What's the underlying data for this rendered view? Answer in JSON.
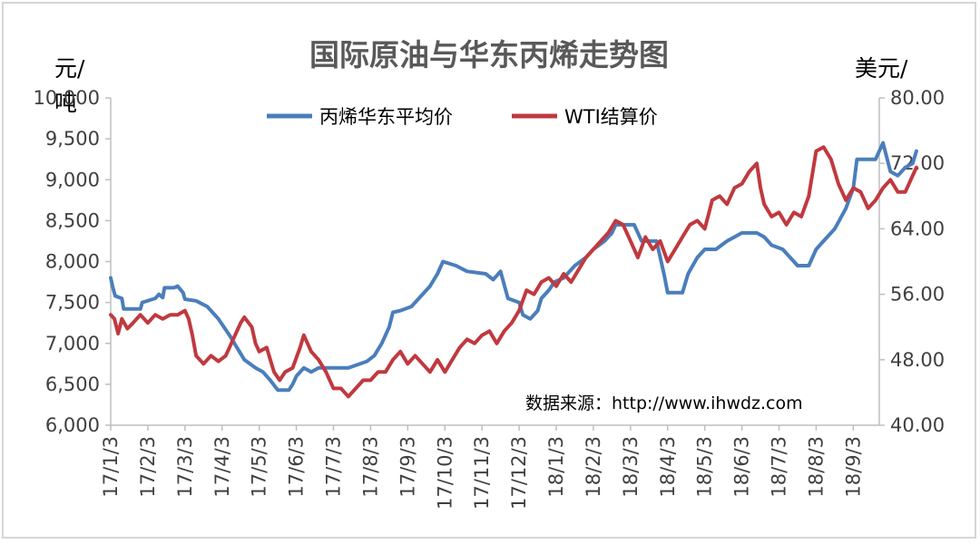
{
  "chart_data": {
    "type": "line",
    "title": "国际原油与华东丙烯走势图",
    "left_unit_line1": "元/",
    "left_unit_line2": "吨",
    "right_unit": "美元/",
    "source": "数据来源：http://www.ihwdz.com",
    "ylim_left": [
      6000,
      10000
    ],
    "ylim_right": [
      40,
      80
    ],
    "y_ticks_left": [
      "6,000",
      "6,500",
      "7,000",
      "7,500",
      "8,000",
      "8,500",
      "9,000",
      "9,500",
      "10,000"
    ],
    "y_ticks_right": [
      "40.00",
      "48.00",
      "56.00",
      "64.00",
      "72.00",
      "80.00"
    ],
    "x_ticks": [
      "17/1/3",
      "17/2/3",
      "17/3/3",
      "17/4/3",
      "17/5/3",
      "17/6/3",
      "17/7/3",
      "17/8/3",
      "17/9/3",
      "17/10/3",
      "17/11/3",
      "17/12/3",
      "18/1/3",
      "18/2/3",
      "18/3/3",
      "18/4/3",
      "18/5/3",
      "18/6/3",
      "18/7/3",
      "18/8/3",
      "18/9/3"
    ],
    "x_range_months": [
      0,
      20.7
    ],
    "legend_position": "top-center",
    "grid": false,
    "series": [
      {
        "name": "丙烯华东平均价",
        "axis": "left",
        "color": "#4a7ebb",
        "points": [
          [
            0.0,
            7800
          ],
          [
            0.05,
            7700
          ],
          [
            0.12,
            7580
          ],
          [
            0.3,
            7550
          ],
          [
            0.35,
            7420
          ],
          [
            0.8,
            7420
          ],
          [
            0.85,
            7500
          ],
          [
            1.2,
            7550
          ],
          [
            1.3,
            7600
          ],
          [
            1.4,
            7560
          ],
          [
            1.45,
            7680
          ],
          [
            1.7,
            7680
          ],
          [
            1.8,
            7700
          ],
          [
            1.95,
            7620
          ],
          [
            2.0,
            7540
          ],
          [
            2.3,
            7520
          ],
          [
            2.6,
            7450
          ],
          [
            2.9,
            7300
          ],
          [
            3.2,
            7100
          ],
          [
            3.4,
            6950
          ],
          [
            3.6,
            6800
          ],
          [
            3.9,
            6700
          ],
          [
            4.1,
            6650
          ],
          [
            4.3,
            6550
          ],
          [
            4.5,
            6430
          ],
          [
            4.8,
            6430
          ],
          [
            4.9,
            6500
          ],
          [
            5.0,
            6600
          ],
          [
            5.2,
            6700
          ],
          [
            5.4,
            6650
          ],
          [
            5.6,
            6700
          ],
          [
            6.4,
            6700
          ],
          [
            6.9,
            6780
          ],
          [
            7.1,
            6850
          ],
          [
            7.3,
            7000
          ],
          [
            7.5,
            7200
          ],
          [
            7.6,
            7380
          ],
          [
            7.8,
            7400
          ],
          [
            8.1,
            7450
          ],
          [
            8.3,
            7550
          ],
          [
            8.6,
            7700
          ],
          [
            8.8,
            7850
          ],
          [
            8.95,
            8000
          ],
          [
            9.3,
            7950
          ],
          [
            9.6,
            7880
          ],
          [
            10.1,
            7850
          ],
          [
            10.3,
            7780
          ],
          [
            10.5,
            7880
          ],
          [
            10.7,
            7550
          ],
          [
            11.0,
            7500
          ],
          [
            11.1,
            7350
          ],
          [
            11.3,
            7300
          ],
          [
            11.5,
            7400
          ],
          [
            11.6,
            7550
          ],
          [
            11.8,
            7650
          ],
          [
            11.95,
            7750
          ],
          [
            12.2,
            7800
          ],
          [
            12.5,
            7950
          ],
          [
            12.8,
            8050
          ],
          [
            13.0,
            8150
          ],
          [
            13.3,
            8250
          ],
          [
            13.5,
            8350
          ],
          [
            13.6,
            8450
          ],
          [
            14.1,
            8450
          ],
          [
            14.2,
            8350
          ],
          [
            14.3,
            8250
          ],
          [
            14.7,
            8250
          ],
          [
            14.9,
            7850
          ],
          [
            15.0,
            7620
          ],
          [
            15.4,
            7620
          ],
          [
            15.55,
            7850
          ],
          [
            15.8,
            8050
          ],
          [
            16.0,
            8150
          ],
          [
            16.3,
            8150
          ],
          [
            16.6,
            8250
          ],
          [
            16.8,
            8300
          ],
          [
            17.0,
            8350
          ],
          [
            17.4,
            8350
          ],
          [
            17.6,
            8300
          ],
          [
            17.8,
            8200
          ],
          [
            18.1,
            8150
          ],
          [
            18.3,
            8050
          ],
          [
            18.5,
            7950
          ],
          [
            18.8,
            7950
          ],
          [
            19.0,
            8150
          ],
          [
            19.2,
            8250
          ],
          [
            19.5,
            8400
          ],
          [
            19.8,
            8650
          ],
          [
            20.0,
            8900
          ],
          [
            20.1,
            9250
          ],
          [
            20.45,
            9250
          ],
          [
            20.6,
            9250
          ],
          [
            20.8,
            9450
          ],
          [
            21.0,
            9100
          ],
          [
            21.2,
            9050
          ],
          [
            21.4,
            9150
          ],
          [
            21.6,
            9200
          ],
          [
            21.7,
            9350
          ]
        ]
      },
      {
        "name": "WTI结算价",
        "axis": "right",
        "color": "#c0393f",
        "points": [
          [
            0.0,
            53.5
          ],
          [
            0.1,
            53.0
          ],
          [
            0.2,
            51.2
          ],
          [
            0.3,
            53.0
          ],
          [
            0.45,
            51.8
          ],
          [
            0.6,
            52.5
          ],
          [
            0.8,
            53.5
          ],
          [
            1.0,
            52.5
          ],
          [
            1.2,
            53.5
          ],
          [
            1.4,
            53.0
          ],
          [
            1.6,
            53.5
          ],
          [
            1.8,
            53.5
          ],
          [
            2.0,
            54.0
          ],
          [
            2.1,
            53.0
          ],
          [
            2.2,
            51.0
          ],
          [
            2.3,
            48.5
          ],
          [
            2.5,
            47.5
          ],
          [
            2.7,
            48.5
          ],
          [
            2.9,
            47.8
          ],
          [
            3.1,
            48.5
          ],
          [
            3.3,
            50.5
          ],
          [
            3.5,
            52.5
          ],
          [
            3.6,
            53.2
          ],
          [
            3.8,
            52.0
          ],
          [
            3.9,
            50.0
          ],
          [
            4.0,
            49.0
          ],
          [
            4.2,
            49.5
          ],
          [
            4.3,
            48.0
          ],
          [
            4.4,
            46.5
          ],
          [
            4.55,
            45.5
          ],
          [
            4.7,
            46.5
          ],
          [
            4.9,
            47.0
          ],
          [
            5.1,
            49.5
          ],
          [
            5.2,
            51.0
          ],
          [
            5.4,
            49.0
          ],
          [
            5.6,
            48.0
          ],
          [
            5.8,
            46.5
          ],
          [
            6.0,
            44.5
          ],
          [
            6.2,
            44.5
          ],
          [
            6.4,
            43.5
          ],
          [
            6.6,
            44.5
          ],
          [
            6.8,
            45.5
          ],
          [
            7.0,
            45.5
          ],
          [
            7.2,
            46.5
          ],
          [
            7.4,
            46.5
          ],
          [
            7.6,
            48.0
          ],
          [
            7.8,
            49.0
          ],
          [
            8.0,
            47.5
          ],
          [
            8.2,
            48.5
          ],
          [
            8.4,
            47.5
          ],
          [
            8.6,
            46.5
          ],
          [
            8.8,
            48.0
          ],
          [
            9.0,
            46.5
          ],
          [
            9.2,
            48.0
          ],
          [
            9.4,
            49.5
          ],
          [
            9.6,
            50.5
          ],
          [
            9.8,
            50.0
          ],
          [
            10.0,
            51.0
          ],
          [
            10.2,
            51.5
          ],
          [
            10.4,
            50.0
          ],
          [
            10.6,
            51.5
          ],
          [
            10.8,
            52.5
          ],
          [
            11.0,
            54.0
          ],
          [
            11.2,
            56.5
          ],
          [
            11.4,
            56.0
          ],
          [
            11.6,
            57.5
          ],
          [
            11.8,
            58.0
          ],
          [
            12.0,
            57.0
          ],
          [
            12.2,
            58.5
          ],
          [
            12.4,
            57.5
          ],
          [
            12.6,
            59.0
          ],
          [
            12.8,
            60.5
          ],
          [
            13.0,
            61.5
          ],
          [
            13.2,
            62.5
          ],
          [
            13.4,
            63.5
          ],
          [
            13.6,
            65.0
          ],
          [
            13.8,
            64.5
          ],
          [
            14.0,
            62.5
          ],
          [
            14.2,
            60.5
          ],
          [
            14.4,
            63.0
          ],
          [
            14.6,
            61.5
          ],
          [
            14.8,
            62.5
          ],
          [
            15.0,
            60.0
          ],
          [
            15.2,
            61.5
          ],
          [
            15.4,
            63.0
          ],
          [
            15.6,
            64.5
          ],
          [
            15.8,
            65.0
          ],
          [
            16.0,
            64.0
          ],
          [
            16.2,
            67.5
          ],
          [
            16.4,
            68.0
          ],
          [
            16.6,
            67.0
          ],
          [
            16.8,
            69.0
          ],
          [
            17.0,
            69.5
          ],
          [
            17.2,
            71.0
          ],
          [
            17.4,
            72.0
          ],
          [
            17.5,
            69.0
          ],
          [
            17.6,
            67.0
          ],
          [
            17.8,
            65.5
          ],
          [
            18.0,
            66.0
          ],
          [
            18.2,
            64.5
          ],
          [
            18.4,
            66.0
          ],
          [
            18.6,
            65.5
          ],
          [
            18.8,
            68.0
          ],
          [
            19.0,
            73.5
          ],
          [
            19.2,
            74.0
          ],
          [
            19.4,
            72.5
          ],
          [
            19.6,
            69.5
          ],
          [
            19.8,
            67.5
          ],
          [
            20.0,
            69.0
          ],
          [
            20.2,
            68.5
          ],
          [
            20.4,
            66.5
          ],
          [
            20.6,
            67.5
          ],
          [
            20.8,
            69.0
          ],
          [
            21.0,
            70.0
          ],
          [
            21.2,
            68.5
          ],
          [
            21.4,
            68.5
          ],
          [
            21.6,
            70.5
          ],
          [
            21.7,
            71.5
          ]
        ]
      }
    ]
  }
}
